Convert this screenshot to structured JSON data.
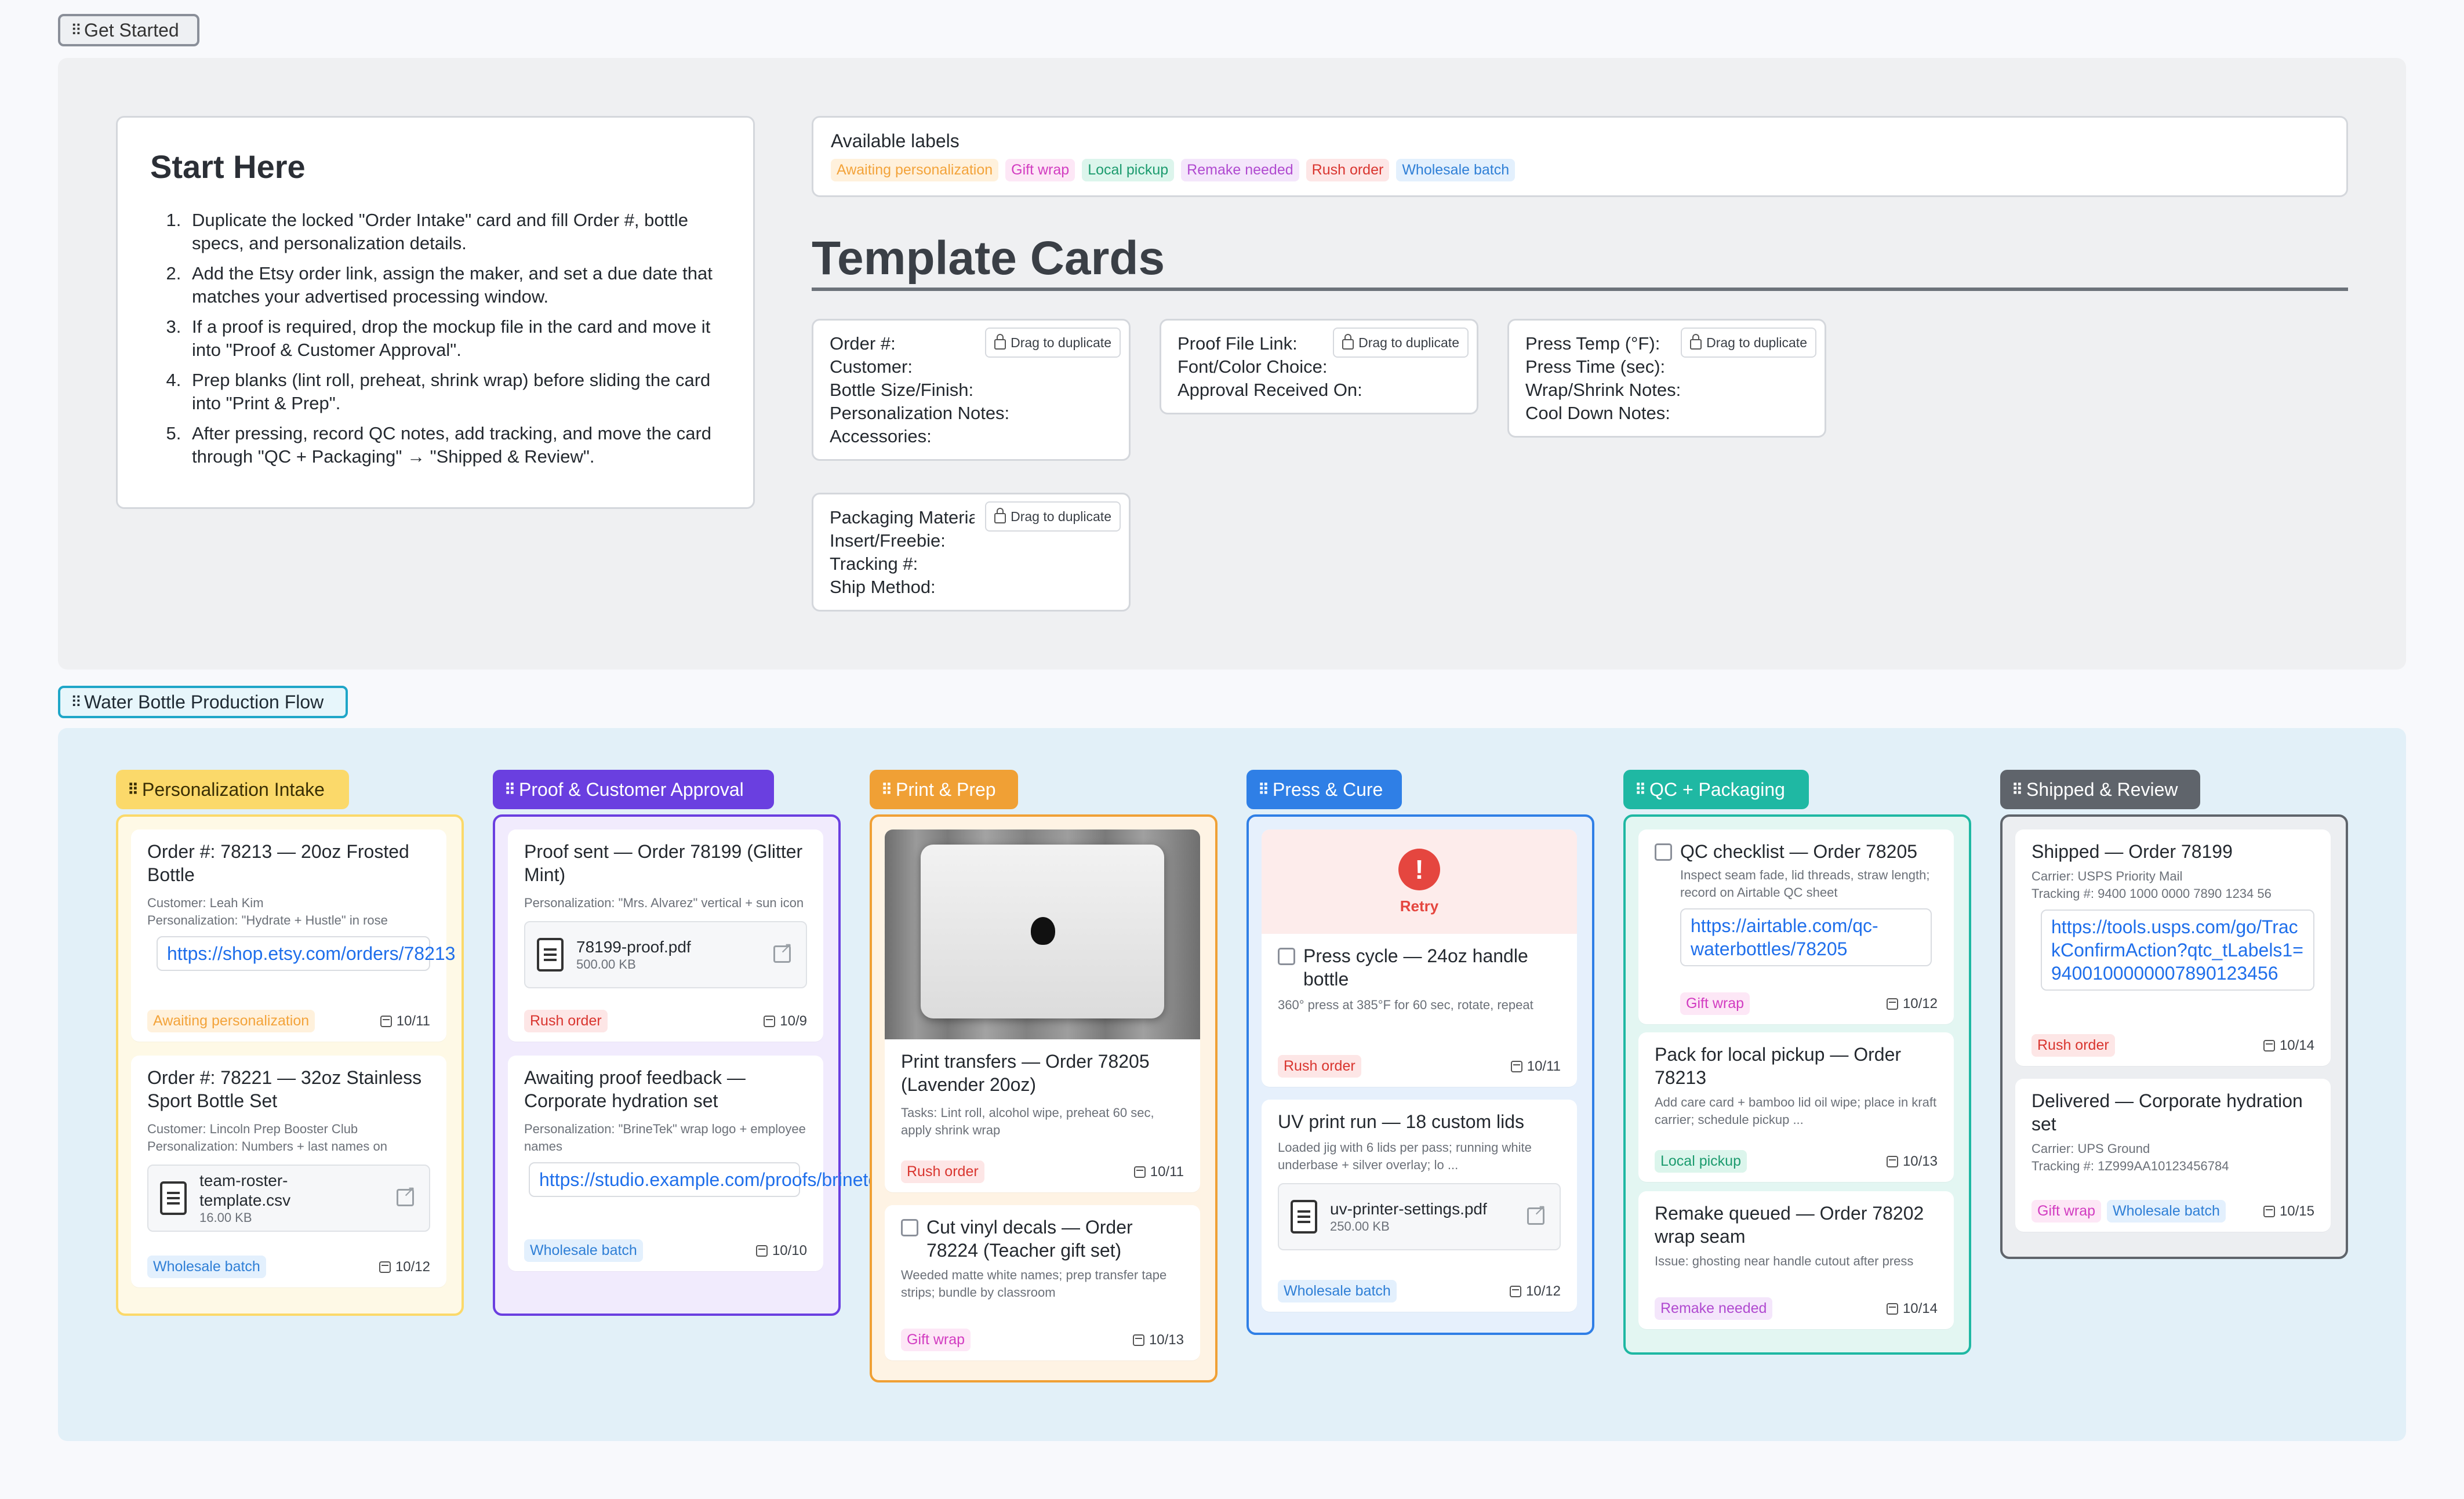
{
  "frames": {
    "get_started": "Get Started",
    "production_flow": "Water Bottle Production Flow"
  },
  "start_here": {
    "title": "Start Here",
    "steps": [
      "Duplicate the locked \"Order Intake\" card and fill Order #, bottle specs, and personalization details.",
      "Add the Etsy order link, assign the maker, and set a due date that matches your advertised processing window.",
      "If a proof is required, drop the mockup file in the card and move it into \"Proof & Customer Approval\".",
      "Prep blanks (lint roll, preheat, shrink wrap) before sliding the card into \"Print & Prep\".",
      "After pressing, record QC notes, add tracking, and move the card through \"QC + Packaging\" → \"Shipped & Review\"."
    ]
  },
  "available_labels": {
    "title": "Available labels",
    "items": [
      "Awaiting personalization",
      "Gift wrap",
      "Local pickup",
      "Remake needed",
      "Rush order",
      "Wholesale batch"
    ]
  },
  "template_cards": {
    "title": "Template Cards",
    "drag_label": "Drag to duplicate",
    "cards": [
      {
        "lines": [
          "Order #:",
          "Customer:",
          "Bottle Size/Finish:",
          "Personalization Notes:",
          "Accessories:"
        ]
      },
      {
        "lines": [
          "Proof File Link:",
          "Font/Color Choice:",
          "Approval Received On:"
        ]
      },
      {
        "lines": [
          "Press Temp (°F):",
          "Press Time (sec):",
          "Wrap/Shrink Notes:",
          "Cool Down Notes:"
        ]
      },
      {
        "lines": [
          "Packaging Materials:",
          "Insert/Freebie:",
          "Tracking #:",
          "Ship Method:"
        ]
      }
    ]
  },
  "columns": [
    {
      "title": "Personalization Intake",
      "color": "#fbd96a",
      "cards": [
        {
          "title": "Order #: 78213 — 20oz Frosted Bottle",
          "sub1": "Customer: Leah Kim",
          "sub2": "Personalization: \"Hydrate + Hustle\" in rose",
          "link": "https://shop.etsy.com/orders/78213",
          "tag": "Awaiting personalization",
          "due": "10/11"
        },
        {
          "title": "Order #: 78221 — 32oz Stainless Sport Bottle Set",
          "sub1": "Customer: Lincoln Prep Booster Club",
          "sub2": "Personalization: Numbers + last names on",
          "file_name": "team-roster-template.csv",
          "file_size": "16.00 KB",
          "tag": "Wholesale batch",
          "due": "10/12"
        }
      ]
    },
    {
      "title": "Proof & Customer Approval",
      "color": "#6a3fe0",
      "cards": [
        {
          "title": "Proof sent — Order 78199 (Glitter Mint)",
          "sub1": "Personalization: \"Mrs. Alvarez\" vertical + sun icon",
          "file_name": "78199-proof.pdf",
          "file_size": "500.00 KB",
          "tag": "Rush order",
          "due": "10/9"
        },
        {
          "title": "Awaiting proof feedback — Corporate hydration set",
          "sub1": "Personalization: \"BrineTek\" wrap logo + employee names",
          "link": "https://studio.example.com/proofs/brinetek",
          "tag": "Wholesale batch",
          "due": "10/10"
        }
      ]
    },
    {
      "title": "Print & Prep",
      "color": "#f0a035",
      "cards": [
        {
          "title": "Print transfers — Order 78205 (Lavender 20oz)",
          "sub1": "Tasks: Lint roll, alcohol wipe, preheat 60 sec, apply shrink wrap",
          "tag": "Rush order",
          "due": "10/11"
        },
        {
          "title": "Cut vinyl decals — Order 78224 (Teacher gift set)",
          "sub1": "Weeded matte white names; prep transfer tape strips; bundle by classroom",
          "tag": "Gift wrap",
          "due": "10/13"
        }
      ]
    },
    {
      "title": "Press & Cure",
      "color": "#2f7fe6",
      "cards": [
        {
          "retry": "Retry",
          "title": "Press cycle — 24oz handle bottle",
          "sub1": "360° press at 385°F for 60 sec, rotate, repeat",
          "tag": "Rush order",
          "due": "10/11"
        },
        {
          "title": "UV print run — 18 custom lids",
          "sub1": "Loaded jig with 6 lids per pass; running white underbase + silver overlay; lo ...",
          "file_name": "uv-printer-settings.pdf",
          "file_size": "250.00 KB",
          "tag": "Wholesale batch",
          "due": "10/12"
        }
      ]
    },
    {
      "title": "QC + Packaging",
      "color": "#1fb8a3",
      "cards": [
        {
          "title": "QC checklist — Order 78205",
          "sub1": "Inspect seam fade, lid threads, straw length; record on Airtable QC sheet",
          "link": "https://airtable.com/qc-waterbottles/78205",
          "tag": "Gift wrap",
          "due": "10/12"
        },
        {
          "title": "Pack for local pickup — Order 78213",
          "sub1": "Add care card + bamboo lid oil wipe; place in kraft carrier; schedule pickup ...",
          "tag": "Local pickup",
          "due": "10/13"
        },
        {
          "title": "Remake queued — Order 78202 wrap seam",
          "sub1": "Issue: ghosting near handle cutout after press",
          "tag": "Remake needed",
          "due": "10/14"
        }
      ]
    },
    {
      "title": "Shipped & Review",
      "color": "#5f646b",
      "cards": [
        {
          "title": "Shipped — Order 78199",
          "sub1": "Carrier: USPS Priority Mail",
          "sub2": "Tracking #: 9400 1000 0000 7890 1234 56",
          "link": "https://tools.usps.com/go/TrackConfirmAction?qtc_tLabels1=9400100000007890123456",
          "tag": "Rush order",
          "due": "10/14"
        },
        {
          "title": "Delivered — Corporate hydration set",
          "sub1": "Carrier: UPS Ground",
          "sub2": "Tracking #: 1Z999AA10123456784",
          "tag": "Gift wrap",
          "tag2": "Wholesale batch",
          "due": "10/15"
        }
      ]
    }
  ]
}
